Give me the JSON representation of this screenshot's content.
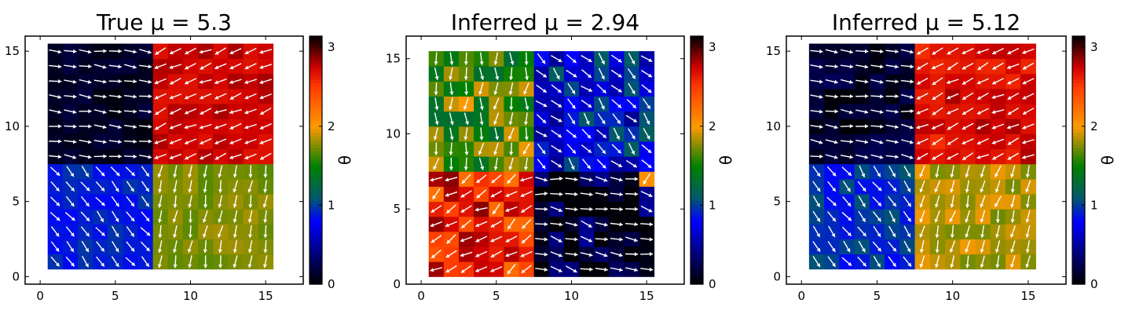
{
  "figure": {
    "panels": [
      {
        "title": "True μ = 5.3"
      },
      {
        "title": "Inferred μ = 2.94"
      },
      {
        "title": "Inferred μ = 5.12"
      }
    ]
  },
  "colormap": {
    "name": "gnuplot-like (black-blue-green-orange-red)",
    "stops": [
      {
        "v": 0.0,
        "color": "#000000"
      },
      {
        "v": 0.8,
        "color": "#0000ff"
      },
      {
        "v": 1.1,
        "color": "#005a6a"
      },
      {
        "v": 1.5,
        "color": "#008000"
      },
      {
        "v": 2.0,
        "color": "#ff9a00"
      },
      {
        "v": 2.5,
        "color": "#ff3c00"
      },
      {
        "v": 2.75,
        "color": "#d00000"
      },
      {
        "v": 3.1416,
        "color": "#000000"
      }
    ]
  },
  "chart_data": [
    {
      "type": "heatmap",
      "title": "True μ = 5.3",
      "grid": {
        "nx": 15,
        "ny": 15,
        "x0": 1,
        "y0": 1,
        "step": 1
      },
      "xlim": [
        -1,
        17.5
      ],
      "ylim": [
        -0.5,
        16
      ],
      "xticks": [
        0,
        5,
        10,
        15
      ],
      "yticks": [
        0,
        5,
        10,
        15
      ],
      "colorbar": {
        "label": "θ",
        "range": [
          0,
          3.1416
        ],
        "ticks": [
          0,
          1,
          2,
          3
        ]
      },
      "field_description": "Four quadrant domains meeting near (8,8): upper-left ~0.1-0.3 (arrows pointing right), upper-right ~2.6-2.9 (arrows pointing down-left), lower-left ~0.8-1.0 (arrows pointing up-right), lower-right ~1.6-2.0 (arrows pointing down).",
      "quadrants": {
        "center": [
          8,
          8
        ],
        "upper_left": 0.12,
        "upper_right": 2.75,
        "lower_left": 0.9,
        "lower_right": 1.75
      },
      "noise": 0.08,
      "arrows": "white unit vectors at each cell, angle -θ"
    },
    {
      "type": "heatmap",
      "title": "Inferred μ = 2.94",
      "grid": {
        "nx": 15,
        "ny": 15,
        "x0": 1,
        "y0": 1,
        "step": 1
      },
      "xlim": [
        -1,
        17.5
      ],
      "ylim": [
        0,
        16.5
      ],
      "xticks": [
        0,
        5,
        10,
        15
      ],
      "yticks": [
        0,
        5,
        10,
        15
      ],
      "colorbar": {
        "label": "θ",
        "range": [
          0,
          3.1416
        ],
        "ticks": [
          0,
          1,
          2,
          3
        ]
      },
      "field_description": "Noisy four-domain field: upper-left green/olive ~1.5-1.9, upper-right blue ~0.6-1.0, lower-left red/orange ~2.4-2.8, lower-right near black ~0.0-0.2 with a single orange cell at (15,7).",
      "quadrants": {
        "center": [
          8,
          8
        ],
        "upper_left": 1.65,
        "upper_right": 0.8,
        "lower_left": 2.55,
        "lower_right": 0.12
      },
      "noise": 0.35,
      "arrows": "white unit vectors at each cell, angle -θ"
    },
    {
      "type": "heatmap",
      "title": "Inferred μ = 5.12",
      "grid": {
        "nx": 15,
        "ny": 15,
        "x0": 1,
        "y0": 1,
        "step": 1
      },
      "xlim": [
        -1,
        17.5
      ],
      "ylim": [
        -0.5,
        16
      ],
      "xticks": [
        0,
        5,
        10,
        15
      ],
      "yticks": [
        0,
        5,
        10,
        15
      ],
      "colorbar": {
        "label": "θ",
        "range": [
          0,
          3.1416
        ],
        "ticks": [
          0,
          1,
          2,
          3
        ]
      },
      "field_description": "Similar to the true field: upper-left ~0.15, upper-right ~2.7, lower-left ~0.95, lower-right ~1.85, moderately noisy.",
      "quadrants": {
        "center": [
          8,
          8
        ],
        "upper_left": 0.15,
        "upper_right": 2.7,
        "lower_left": 0.95,
        "lower_right": 1.85
      },
      "noise": 0.14,
      "arrows": "white unit vectors at each cell, angle -θ"
    }
  ]
}
